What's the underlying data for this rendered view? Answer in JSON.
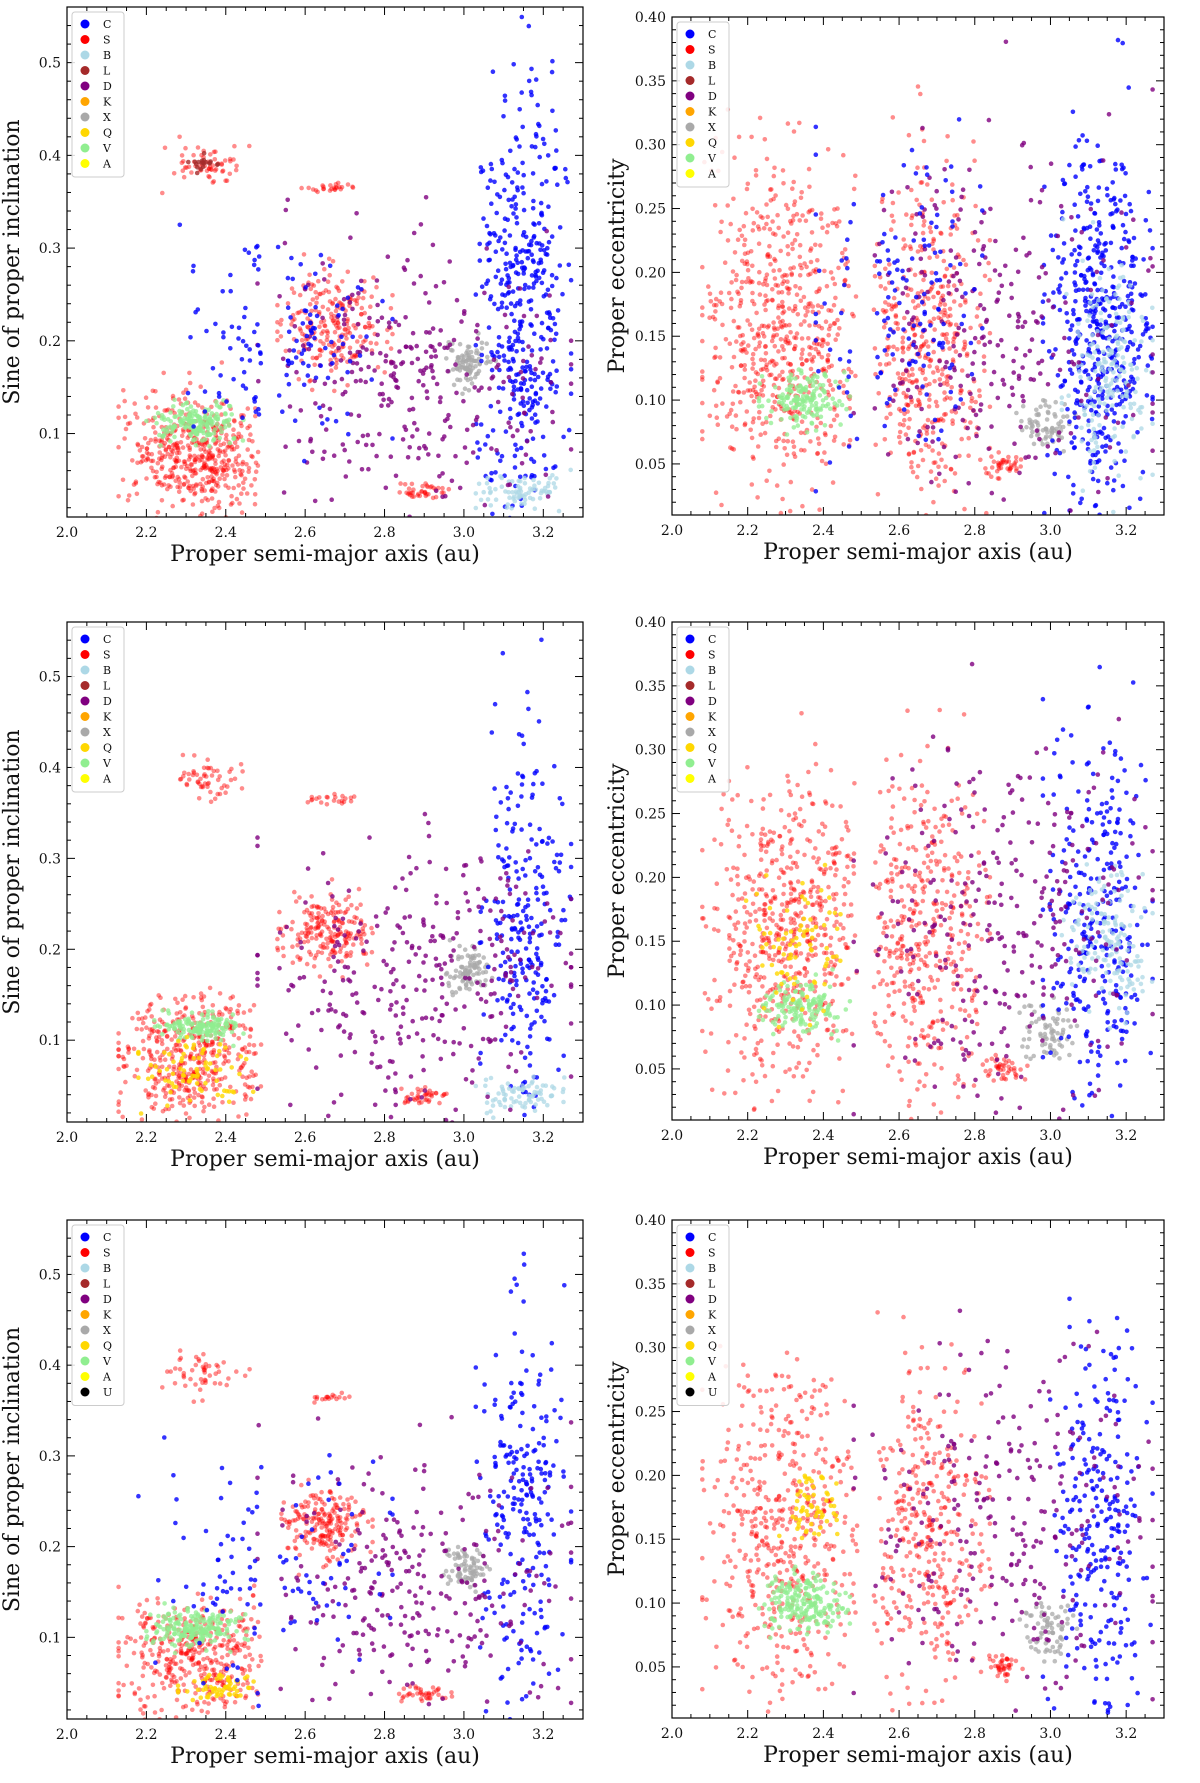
{
  "figure": {
    "description_free": true
  },
  "legend_classes": {
    "C": "#0000ff",
    "S": "#ff0000",
    "B": "#add8e6",
    "L": "#a52a2a",
    "D": "#800080",
    "K": "#ffa500",
    "X": "#a9a9a9",
    "Q": "#ffd700",
    "V": "#90ee90",
    "A": "#ffff00",
    "U": "#000000"
  },
  "chart_data": [
    {
      "type": "scatter",
      "id": "row1-left",
      "xlabel": "Proper semi-major axis (au)",
      "ylabel": "Sine of proper inclination",
      "xlim": [
        2.0,
        3.3
      ],
      "ylim": [
        0.01,
        0.56
      ],
      "xticks": [
        "2.0",
        "2.2",
        "2.4",
        "2.6",
        "2.8",
        "3.0",
        "3.2"
      ],
      "yticks": [
        "0.1",
        "0.2",
        "0.3",
        "0.4",
        "0.5"
      ],
      "legend": [
        "C",
        "S",
        "B",
        "L",
        "D",
        "K",
        "X",
        "Q",
        "V",
        "A"
      ],
      "clusters": [
        {
          "class": "S",
          "x": [
            2.15,
            2.5
          ],
          "y": [
            0.02,
            0.14
          ],
          "n": 500
        },
        {
          "class": "V",
          "x": [
            2.22,
            2.44
          ],
          "y": [
            0.09,
            0.13
          ],
          "n": 180
        },
        {
          "class": "S",
          "x": [
            2.55,
            2.8
          ],
          "y": [
            0.17,
            0.27
          ],
          "n": 220
        },
        {
          "class": "S",
          "x": [
            2.26,
            2.44
          ],
          "y": [
            0.37,
            0.41
          ],
          "n": 60
        },
        {
          "class": "L",
          "x": [
            2.3,
            2.38
          ],
          "y": [
            0.38,
            0.4
          ],
          "n": 20
        },
        {
          "class": "S",
          "x": [
            2.6,
            2.72
          ],
          "y": [
            0.36,
            0.37
          ],
          "n": 25
        },
        {
          "class": "S",
          "x": [
            2.83,
            2.95
          ],
          "y": [
            0.03,
            0.045
          ],
          "n": 40
        },
        {
          "class": "X",
          "x": [
            2.96,
            3.06
          ],
          "y": [
            0.15,
            0.2
          ],
          "n": 90
        },
        {
          "class": "C",
          "x": [
            3.05,
            3.25
          ],
          "y": [
            0.02,
            0.45
          ],
          "n": 420
        },
        {
          "class": "B",
          "x": [
            3.05,
            3.25
          ],
          "y": [
            0.02,
            0.06
          ],
          "n": 80
        },
        {
          "class": "D",
          "x": [
            2.5,
            3.25
          ],
          "y": [
            0.02,
            0.3
          ],
          "n": 300
        },
        {
          "class": "C",
          "x": [
            2.3,
            2.8
          ],
          "y": [
            0.1,
            0.3
          ],
          "n": 150
        }
      ]
    },
    {
      "type": "scatter",
      "id": "row1-right",
      "xlabel": "Proper semi-major axis (au)",
      "ylabel": "Proper eccentricity",
      "xlim": [
        2.0,
        3.3
      ],
      "ylim": [
        0.01,
        0.4
      ],
      "xticks": [
        "2.0",
        "2.2",
        "2.4",
        "2.6",
        "2.8",
        "3.0",
        "3.2"
      ],
      "yticks": [
        "0.05",
        "0.10",
        "0.15",
        "0.20",
        "0.25",
        "0.30",
        "0.35",
        "0.40"
      ],
      "legend": [
        "C",
        "S",
        "B",
        "L",
        "D",
        "K",
        "X",
        "Q",
        "V",
        "A"
      ],
      "clusters": [
        {
          "class": "S",
          "x": [
            2.1,
            2.5
          ],
          "y": [
            0.04,
            0.27
          ],
          "n": 650
        },
        {
          "class": "V",
          "x": [
            2.25,
            2.45
          ],
          "y": [
            0.08,
            0.12
          ],
          "n": 160
        },
        {
          "class": "S",
          "x": [
            2.52,
            2.82
          ],
          "y": [
            0.03,
            0.28
          ],
          "n": 450
        },
        {
          "class": "S",
          "x": [
            2.83,
            2.92
          ],
          "y": [
            0.04,
            0.06
          ],
          "n": 40
        },
        {
          "class": "X",
          "x": [
            2.93,
            3.05
          ],
          "y": [
            0.06,
            0.1
          ],
          "n": 70
        },
        {
          "class": "C",
          "x": [
            3.0,
            3.25
          ],
          "y": [
            0.02,
            0.3
          ],
          "n": 500
        },
        {
          "class": "B",
          "x": [
            3.05,
            3.25
          ],
          "y": [
            0.05,
            0.2
          ],
          "n": 200
        },
        {
          "class": "D",
          "x": [
            2.5,
            3.25
          ],
          "y": [
            0.02,
            0.3
          ],
          "n": 260
        },
        {
          "class": "C",
          "x": [
            2.4,
            2.8
          ],
          "y": [
            0.05,
            0.3
          ],
          "n": 160
        }
      ]
    },
    {
      "type": "scatter",
      "id": "row2-left",
      "xlabel": "Proper semi-major axis (au)",
      "ylabel": "Sine of proper inclination",
      "xlim": [
        2.0,
        3.3
      ],
      "ylim": [
        0.01,
        0.56
      ],
      "xticks": [
        "2.0",
        "2.2",
        "2.4",
        "2.6",
        "2.8",
        "3.0",
        "3.2"
      ],
      "yticks": [
        "0.1",
        "0.2",
        "0.3",
        "0.4",
        "0.5"
      ],
      "legend": [
        "C",
        "S",
        "B",
        "L",
        "D",
        "K",
        "X",
        "Q",
        "V",
        "A"
      ],
      "clusters": [
        {
          "class": "S",
          "x": [
            2.15,
            2.5
          ],
          "y": [
            0.02,
            0.14
          ],
          "n": 450
        },
        {
          "class": "V",
          "x": [
            2.24,
            2.44
          ],
          "y": [
            0.1,
            0.13
          ],
          "n": 150
        },
        {
          "class": "Q",
          "x": [
            2.2,
            2.45
          ],
          "y": [
            0.03,
            0.1
          ],
          "n": 80
        },
        {
          "class": "S",
          "x": [
            2.55,
            2.75
          ],
          "y": [
            0.18,
            0.26
          ],
          "n": 200
        },
        {
          "class": "S",
          "x": [
            2.26,
            2.44
          ],
          "y": [
            0.37,
            0.41
          ],
          "n": 55
        },
        {
          "class": "S",
          "x": [
            2.6,
            2.72
          ],
          "y": [
            0.36,
            0.37
          ],
          "n": 22
        },
        {
          "class": "S",
          "x": [
            2.83,
            2.95
          ],
          "y": [
            0.03,
            0.045
          ],
          "n": 40
        },
        {
          "class": "X",
          "x": [
            2.96,
            3.06
          ],
          "y": [
            0.15,
            0.2
          ],
          "n": 90
        },
        {
          "class": "C",
          "x": [
            3.05,
            3.25
          ],
          "y": [
            0.02,
            0.45
          ],
          "n": 250
        },
        {
          "class": "B",
          "x": [
            3.05,
            3.25
          ],
          "y": [
            0.02,
            0.06
          ],
          "n": 80
        },
        {
          "class": "D",
          "x": [
            2.5,
            3.25
          ],
          "y": [
            0.02,
            0.3
          ],
          "n": 320
        }
      ]
    },
    {
      "type": "scatter",
      "id": "row2-right",
      "xlabel": "Proper semi-major axis (au)",
      "ylabel": "Proper eccentricity",
      "xlim": [
        2.0,
        3.3
      ],
      "ylim": [
        0.01,
        0.4
      ],
      "xticks": [
        "2.0",
        "2.2",
        "2.4",
        "2.6",
        "2.8",
        "3.0",
        "3.2"
      ],
      "yticks": [
        "0.05",
        "0.10",
        "0.15",
        "0.20",
        "0.25",
        "0.30",
        "0.35",
        "0.40"
      ],
      "legend": [
        "C",
        "S",
        "B",
        "L",
        "D",
        "K",
        "X",
        "Q",
        "V",
        "A"
      ],
      "clusters": [
        {
          "class": "S",
          "x": [
            2.1,
            2.5
          ],
          "y": [
            0.04,
            0.27
          ],
          "n": 600
        },
        {
          "class": "V",
          "x": [
            2.25,
            2.45
          ],
          "y": [
            0.08,
            0.12
          ],
          "n": 140
        },
        {
          "class": "Q",
          "x": [
            2.2,
            2.45
          ],
          "y": [
            0.1,
            0.2
          ],
          "n": 80
        },
        {
          "class": "S",
          "x": [
            2.52,
            2.82
          ],
          "y": [
            0.03,
            0.28
          ],
          "n": 420
        },
        {
          "class": "S",
          "x": [
            2.83,
            2.92
          ],
          "y": [
            0.04,
            0.06
          ],
          "n": 40
        },
        {
          "class": "X",
          "x": [
            2.93,
            3.05
          ],
          "y": [
            0.06,
            0.1
          ],
          "n": 70
        },
        {
          "class": "C",
          "x": [
            3.0,
            3.25
          ],
          "y": [
            0.02,
            0.3
          ],
          "n": 300
        },
        {
          "class": "B",
          "x": [
            3.05,
            3.25
          ],
          "y": [
            0.1,
            0.2
          ],
          "n": 150
        },
        {
          "class": "D",
          "x": [
            2.5,
            3.25
          ],
          "y": [
            0.02,
            0.3
          ],
          "n": 300
        }
      ]
    },
    {
      "type": "scatter",
      "id": "row3-left",
      "xlabel": "Proper semi-major axis (au)",
      "ylabel": "Sine of proper inclination",
      "xlim": [
        2.0,
        3.3
      ],
      "ylim": [
        0.01,
        0.56
      ],
      "xticks": [
        "2.0",
        "2.2",
        "2.4",
        "2.6",
        "2.8",
        "3.0",
        "3.2"
      ],
      "yticks": [
        "0.1",
        "0.2",
        "0.3",
        "0.4",
        "0.5"
      ],
      "legend": [
        "C",
        "S",
        "B",
        "L",
        "D",
        "K",
        "X",
        "Q",
        "V",
        "A",
        "U"
      ],
      "clusters": [
        {
          "class": "S",
          "x": [
            2.15,
            2.5
          ],
          "y": [
            0.02,
            0.14
          ],
          "n": 420
        },
        {
          "class": "V",
          "x": [
            2.22,
            2.44
          ],
          "y": [
            0.09,
            0.13
          ],
          "n": 200
        },
        {
          "class": "Q",
          "x": [
            2.3,
            2.45
          ],
          "y": [
            0.03,
            0.06
          ],
          "n": 60
        },
        {
          "class": "S",
          "x": [
            2.55,
            2.75
          ],
          "y": [
            0.19,
            0.26
          ],
          "n": 200
        },
        {
          "class": "S",
          "x": [
            2.26,
            2.44
          ],
          "y": [
            0.37,
            0.41
          ],
          "n": 50
        },
        {
          "class": "S",
          "x": [
            2.6,
            2.72
          ],
          "y": [
            0.36,
            0.37
          ],
          "n": 18
        },
        {
          "class": "S",
          "x": [
            2.83,
            2.95
          ],
          "y": [
            0.03,
            0.045
          ],
          "n": 40
        },
        {
          "class": "X",
          "x": [
            2.96,
            3.06
          ],
          "y": [
            0.15,
            0.2
          ],
          "n": 80
        },
        {
          "class": "C",
          "x": [
            3.05,
            3.25
          ],
          "y": [
            0.02,
            0.45
          ],
          "n": 240
        },
        {
          "class": "D",
          "x": [
            2.5,
            3.25
          ],
          "y": [
            0.02,
            0.3
          ],
          "n": 280
        },
        {
          "class": "C",
          "x": [
            2.2,
            2.8
          ],
          "y": [
            0.05,
            0.3
          ],
          "n": 120
        }
      ]
    },
    {
      "type": "scatter",
      "id": "row3-right",
      "xlabel": "Proper semi-major axis (au)",
      "ylabel": "Proper eccentricity",
      "xlim": [
        2.0,
        3.3
      ],
      "ylim": [
        0.01,
        0.4
      ],
      "xticks": [
        "2.0",
        "2.2",
        "2.4",
        "2.6",
        "2.8",
        "3.0",
        "3.2"
      ],
      "yticks": [
        "0.05",
        "0.10",
        "0.15",
        "0.20",
        "0.25",
        "0.30",
        "0.35",
        "0.40"
      ],
      "legend": [
        "C",
        "S",
        "B",
        "L",
        "D",
        "K",
        "X",
        "Q",
        "V",
        "A",
        "U"
      ],
      "clusters": [
        {
          "class": "S",
          "x": [
            2.1,
            2.5
          ],
          "y": [
            0.04,
            0.27
          ],
          "n": 520
        },
        {
          "class": "V",
          "x": [
            2.25,
            2.45
          ],
          "y": [
            0.08,
            0.12
          ],
          "n": 200
        },
        {
          "class": "Q",
          "x": [
            2.3,
            2.45
          ],
          "y": [
            0.15,
            0.2
          ],
          "n": 60
        },
        {
          "class": "S",
          "x": [
            2.52,
            2.82
          ],
          "y": [
            0.03,
            0.28
          ],
          "n": 380
        },
        {
          "class": "S",
          "x": [
            2.83,
            2.92
          ],
          "y": [
            0.04,
            0.06
          ],
          "n": 40
        },
        {
          "class": "X",
          "x": [
            2.93,
            3.05
          ],
          "y": [
            0.06,
            0.1
          ],
          "n": 70
        },
        {
          "class": "C",
          "x": [
            3.0,
            3.25
          ],
          "y": [
            0.02,
            0.3
          ],
          "n": 260
        },
        {
          "class": "D",
          "x": [
            2.5,
            3.25
          ],
          "y": [
            0.02,
            0.3
          ],
          "n": 280
        }
      ]
    }
  ]
}
